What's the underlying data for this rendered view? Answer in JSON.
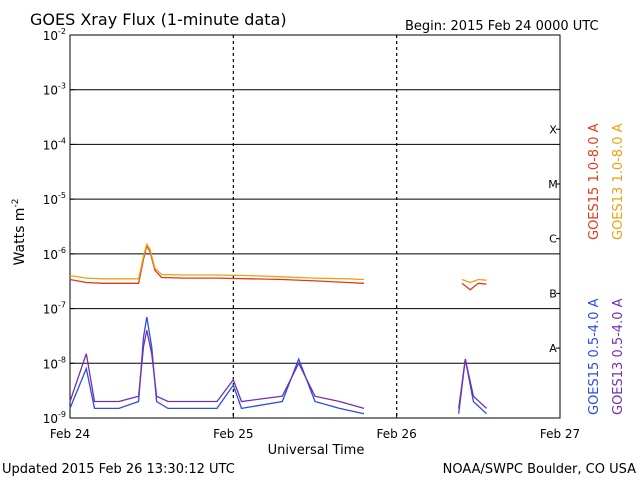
{
  "chart_data": {
    "type": "line",
    "title": "GOES Xray Flux (1-minute data)",
    "begin_text": "Begin:  2015 Feb 24 0000 UTC",
    "ylabel_main": "Watts m",
    "ylabel_exp": "-2",
    "xlabel": "Universal Time",
    "yscale": "log",
    "ylim": [
      1e-09,
      0.01
    ],
    "y_ticks": [
      {
        "base": "10",
        "exp": "-2",
        "value": 0.01
      },
      {
        "base": "10",
        "exp": "-3",
        "value": 0.001
      },
      {
        "base": "10",
        "exp": "-4",
        "value": 0.0001
      },
      {
        "base": "10",
        "exp": "-5",
        "value": 1e-05
      },
      {
        "base": "10",
        "exp": "-6",
        "value": 1e-06
      },
      {
        "base": "10",
        "exp": "-7",
        "value": 1e-07
      },
      {
        "base": "10",
        "exp": "-8",
        "value": 1e-08
      },
      {
        "base": "10",
        "exp": "-9",
        "value": 1e-09
      }
    ],
    "x_ticks": [
      "Feb 24",
      "Feb 25",
      "Feb 26",
      "Feb 27"
    ],
    "xlim_days": [
      0,
      3
    ],
    "flare_classes": [
      {
        "label": "X",
        "value": 0.00016
      },
      {
        "label": "M",
        "value": 1.6e-05
      },
      {
        "label": "C",
        "value": 1.6e-06
      },
      {
        "label": "B",
        "value": 1.6e-07
      },
      {
        "label": "A",
        "value": 1.6e-08
      }
    ],
    "gap_days": [
      [
        1.8,
        1.92
      ],
      [
        2.26,
        2.3
      ]
    ],
    "series": [
      {
        "name": "GOES15 1.0-8.0 A",
        "color": "#e03a1a",
        "points": [
          [
            0.0,
            3.4e-07
          ],
          [
            0.1,
            3e-07
          ],
          [
            0.2,
            2.9e-07
          ],
          [
            0.3,
            2.9e-07
          ],
          [
            0.42,
            2.9e-07
          ],
          [
            0.45,
            8e-07
          ],
          [
            0.47,
            1.4e-06
          ],
          [
            0.49,
            1.1e-06
          ],
          [
            0.52,
            5e-07
          ],
          [
            0.56,
            3.7e-07
          ],
          [
            0.7,
            3.6e-07
          ],
          [
            0.9,
            3.6e-07
          ],
          [
            1.1,
            3.5e-07
          ],
          [
            1.3,
            3.4e-07
          ],
          [
            1.5,
            3.2e-07
          ],
          [
            1.7,
            3e-07
          ],
          [
            1.8,
            2.9e-07
          ],
          [
            2.4,
            2.9e-07
          ],
          [
            2.45,
            2.2e-07
          ],
          [
            2.5,
            2.9e-07
          ],
          [
            2.55,
            2.8e-07
          ]
        ]
      },
      {
        "name": "GOES13 1.0-8.0 A",
        "color": "#f0a010",
        "points": [
          [
            0.0,
            4e-07
          ],
          [
            0.1,
            3.6e-07
          ],
          [
            0.2,
            3.5e-07
          ],
          [
            0.3,
            3.5e-07
          ],
          [
            0.42,
            3.5e-07
          ],
          [
            0.45,
            9e-07
          ],
          [
            0.47,
            1.5e-06
          ],
          [
            0.49,
            1.2e-06
          ],
          [
            0.52,
            5.5e-07
          ],
          [
            0.56,
            4.2e-07
          ],
          [
            0.7,
            4.1e-07
          ],
          [
            0.9,
            4.1e-07
          ],
          [
            1.1,
            4e-07
          ],
          [
            1.3,
            3.8e-07
          ],
          [
            1.5,
            3.6e-07
          ],
          [
            1.7,
            3.5e-07
          ],
          [
            1.8,
            3.4e-07
          ],
          [
            2.4,
            3.4e-07
          ],
          [
            2.45,
            3e-07
          ],
          [
            2.5,
            3.4e-07
          ],
          [
            2.55,
            3.3e-07
          ]
        ]
      },
      {
        "name": "GOES15 0.5-4.0 A",
        "color": "#2a4de0",
        "points": [
          [
            0.0,
            1.5e-09
          ],
          [
            0.1,
            8e-09
          ],
          [
            0.15,
            1.5e-09
          ],
          [
            0.3,
            1.5e-09
          ],
          [
            0.42,
            2e-09
          ],
          [
            0.45,
            3e-08
          ],
          [
            0.47,
            7e-08
          ],
          [
            0.5,
            2e-08
          ],
          [
            0.53,
            2e-09
          ],
          [
            0.6,
            1.5e-09
          ],
          [
            0.9,
            1.5e-09
          ],
          [
            1.0,
            4e-09
          ],
          [
            1.05,
            1.5e-09
          ],
          [
            1.3,
            2e-09
          ],
          [
            1.4,
            1.2e-08
          ],
          [
            1.5,
            2e-09
          ],
          [
            1.65,
            1.5e-09
          ],
          [
            1.8,
            1.2e-09
          ],
          [
            2.38,
            1.2e-09
          ],
          [
            2.42,
            1.2e-08
          ],
          [
            2.47,
            2e-09
          ],
          [
            2.55,
            1.2e-09
          ]
        ]
      },
      {
        "name": "GOES13 0.5-4.0 A",
        "color": "#7030b0",
        "points": [
          [
            0.0,
            2e-09
          ],
          [
            0.1,
            1.5e-08
          ],
          [
            0.15,
            2e-09
          ],
          [
            0.3,
            2e-09
          ],
          [
            0.42,
            2.5e-09
          ],
          [
            0.45,
            2e-08
          ],
          [
            0.47,
            4e-08
          ],
          [
            0.5,
            1.5e-08
          ],
          [
            0.53,
            2.5e-09
          ],
          [
            0.6,
            2e-09
          ],
          [
            0.9,
            2e-09
          ],
          [
            1.0,
            5e-09
          ],
          [
            1.05,
            2e-09
          ],
          [
            1.3,
            2.5e-09
          ],
          [
            1.4,
            1e-08
          ],
          [
            1.5,
            2.5e-09
          ],
          [
            1.65,
            2e-09
          ],
          [
            1.8,
            1.5e-09
          ],
          [
            2.38,
            1.5e-09
          ],
          [
            2.42,
            1.2e-08
          ],
          [
            2.47,
            2.5e-09
          ],
          [
            2.55,
            1.5e-09
          ]
        ]
      }
    ]
  },
  "footer": {
    "updated": "Updated 2015 Feb 26 13:30:12 UTC",
    "source": "NOAA/SWPC Boulder, CO USA"
  }
}
